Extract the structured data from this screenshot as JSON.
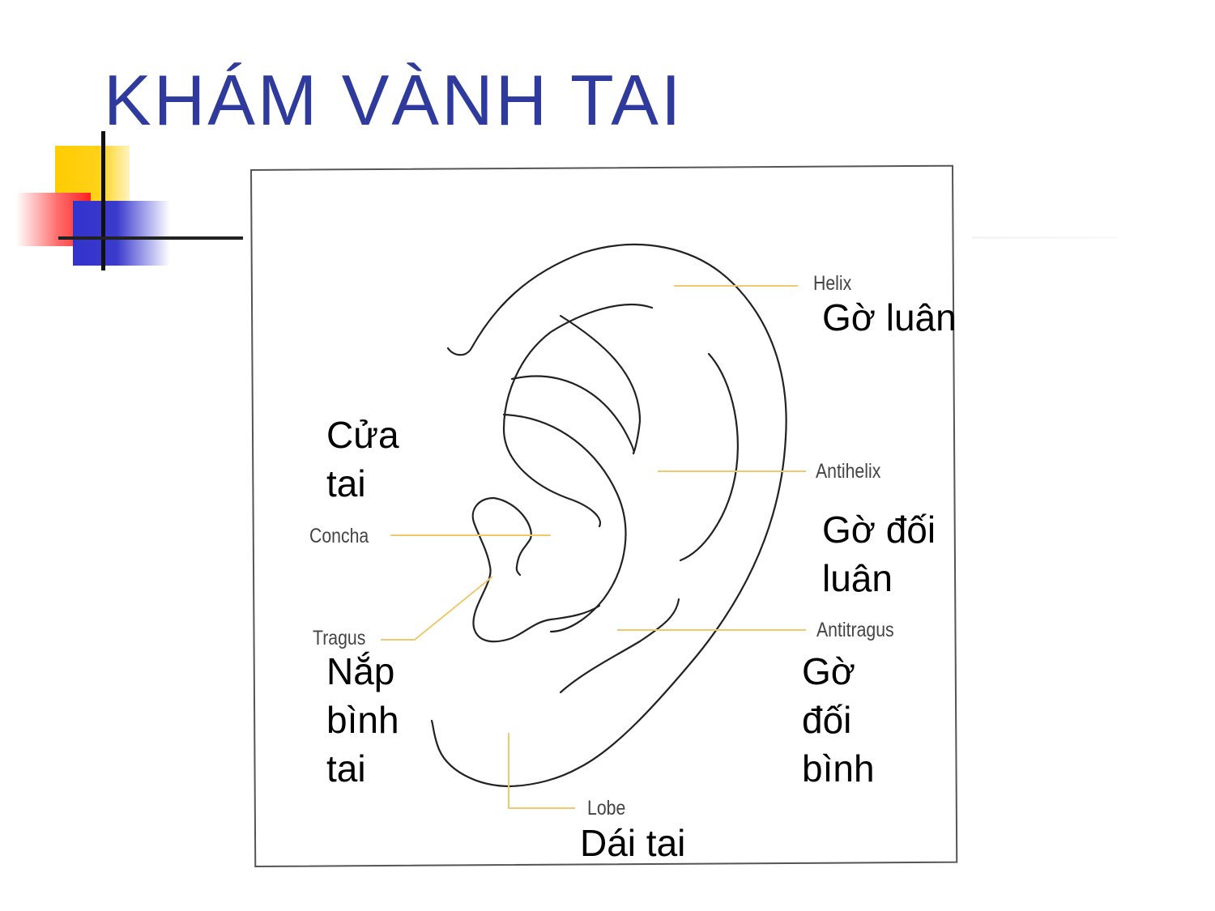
{
  "title": "KHÁM VÀNH TAI",
  "labels_en": {
    "helix": "Helix",
    "antihelix": "Antihelix",
    "concha": "Concha",
    "antitragus": "Antitragus",
    "tragus": "Tragus",
    "lobe": "Lobe"
  },
  "labels_vi": {
    "helix": "Gờ luân",
    "concha": "Cửa\ntai",
    "antihelix": "Gờ đối\nluân",
    "tragus": "Nắp\nbình\ntai",
    "antitragus": "Gờ\nđối\nbình",
    "lobe": "Dái tai"
  },
  "colors": {
    "title": "#2e3a9c",
    "leader_line": "#f0c870",
    "ear_outline": "#222222"
  }
}
